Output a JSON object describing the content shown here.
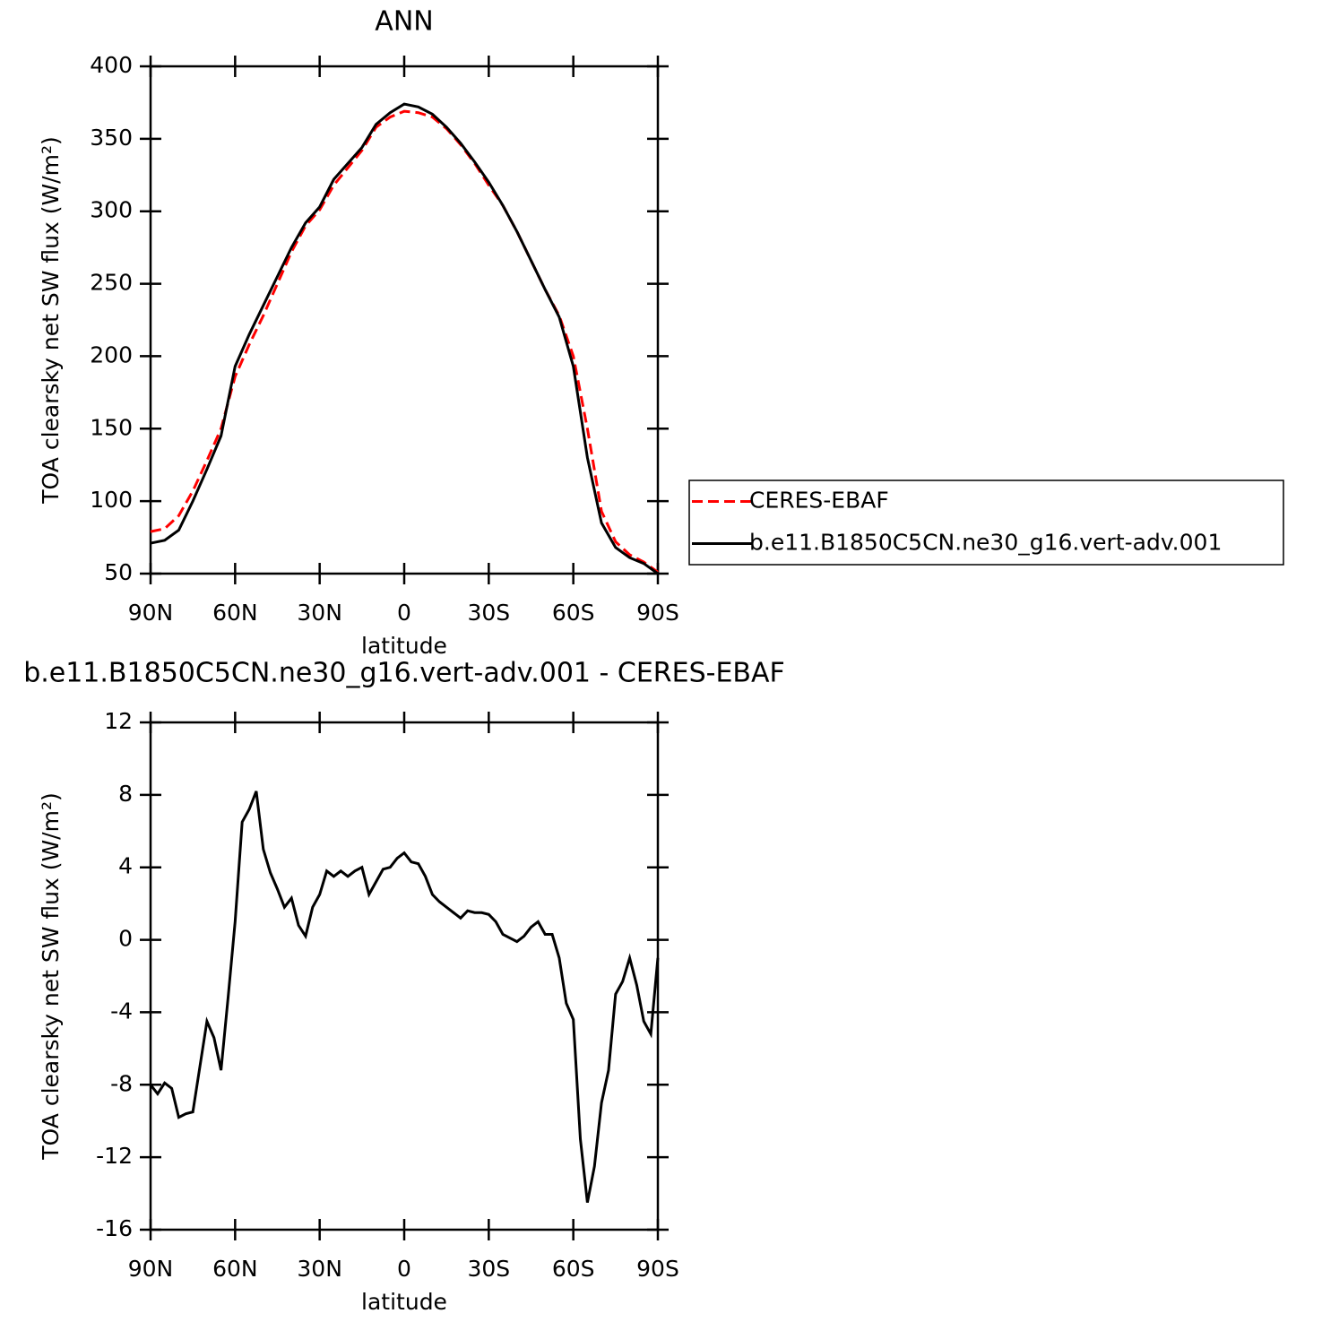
{
  "chart_data": [
    {
      "type": "line",
      "title": "ANN",
      "xlabel": "latitude",
      "ylabel": "TOA clearsky net SW flux (W/m²)",
      "x": [
        90,
        85,
        80,
        75,
        70,
        65,
        60,
        55,
        50,
        45,
        40,
        35,
        30,
        25,
        20,
        15,
        10,
        5,
        0,
        -5,
        -10,
        -15,
        -20,
        -25,
        -30,
        -35,
        -40,
        -45,
        -50,
        -55,
        -60,
        -65,
        -70,
        -75,
        -80,
        -85,
        -90
      ],
      "series": [
        {
          "name": "CERES-EBAF",
          "color": "#ff0000",
          "linestyle": "dashed",
          "values": [
            79,
            81,
            90,
            107,
            128,
            150,
            186,
            208,
            228,
            250,
            272,
            290,
            301,
            318,
            330,
            342,
            358,
            365,
            369,
            368,
            365,
            357,
            346,
            333,
            318,
            304,
            286,
            266,
            246,
            228,
            200,
            150,
            93,
            72,
            63,
            58,
            51
          ]
        },
        {
          "name": "b.e11.B1850C5CN.ne30_g16.vert-adv.001",
          "color": "#000000",
          "linestyle": "solid",
          "values": [
            71,
            73,
            80,
            100,
            122,
            145,
            193,
            215,
            235,
            255,
            275,
            292,
            303,
            322,
            333,
            344,
            360,
            368,
            374,
            372,
            367,
            358,
            347,
            334,
            320,
            304,
            286,
            266,
            246,
            227,
            193,
            130,
            85,
            68,
            61,
            57,
            50
          ]
        }
      ],
      "xlim": [
        90,
        -90
      ],
      "xticks": [
        {
          "value": 90,
          "label": "90N"
        },
        {
          "value": 60,
          "label": "60N"
        },
        {
          "value": 30,
          "label": "30N"
        },
        0,
        {
          "value": -30,
          "label": "30S"
        },
        {
          "value": -60,
          "label": "60S"
        },
        {
          "value": -90,
          "label": "90S"
        }
      ],
      "ylim": [
        50,
        400
      ],
      "yticks": [
        50,
        100,
        150,
        200,
        250,
        300,
        350,
        400
      ],
      "legend": "outside-right"
    },
    {
      "type": "line",
      "title": "b.e11.B1850C5CN.ne30_g16.vert-adv.001 - CERES-EBAF",
      "xlabel": "latitude",
      "ylabel": "TOA clearsky net SW flux (W/m²)",
      "x": [
        90,
        87.5,
        85,
        82.5,
        80,
        77.5,
        75,
        72.5,
        70,
        67.5,
        65,
        62.5,
        60,
        57.5,
        55,
        52.5,
        50,
        47.5,
        45,
        42.5,
        40,
        37.5,
        35,
        32.5,
        30,
        27.5,
        25,
        22.5,
        20,
        17.5,
        15,
        12.5,
        10,
        7.5,
        5,
        2.5,
        0,
        -2.5,
        -5,
        -7.5,
        -10,
        -12.5,
        -15,
        -17.5,
        -20,
        -22.5,
        -25,
        -27.5,
        -30,
        -32.5,
        -35,
        -37.5,
        -40,
        -42.5,
        -45,
        -47.5,
        -50,
        -52.5,
        -55,
        -57.5,
        -60,
        -62.5,
        -65,
        -67.5,
        -70,
        -72.5,
        -75,
        -77.5,
        -80,
        -82.5,
        -85,
        -87.5,
        -90
      ],
      "series": [
        {
          "color": "#000000",
          "linestyle": "solid",
          "values": [
            -8.0,
            -8.5,
            -7.9,
            -8.2,
            -9.8,
            -9.6,
            -9.5,
            -7.0,
            -4.5,
            -5.4,
            -7.2,
            -3.2,
            1.0,
            6.5,
            7.2,
            8.2,
            5.0,
            3.7,
            2.8,
            1.8,
            2.3,
            0.8,
            0.2,
            1.8,
            2.5,
            3.8,
            3.5,
            3.8,
            3.5,
            3.8,
            4.0,
            2.5,
            3.2,
            3.9,
            4.0,
            4.5,
            4.8,
            4.3,
            4.2,
            3.5,
            2.5,
            2.1,
            1.8,
            1.5,
            1.2,
            1.6,
            1.5,
            1.5,
            1.4,
            1.0,
            0.3,
            0.1,
            -0.1,
            0.2,
            0.7,
            1.0,
            0.3,
            0.3,
            -1.0,
            -3.5,
            -4.4,
            -11,
            -14.5,
            -12.5,
            -9.0,
            -7.2,
            -3.0,
            -2.3,
            -1.0,
            -2.5,
            -4.5,
            -5.2,
            -1.0
          ]
        }
      ],
      "xlim": [
        90,
        -90
      ],
      "xticks": [
        {
          "value": 90,
          "label": "90N"
        },
        {
          "value": 60,
          "label": "60N"
        },
        {
          "value": 30,
          "label": "30N"
        },
        0,
        {
          "value": -30,
          "label": "30S"
        },
        {
          "value": -60,
          "label": "60S"
        },
        {
          "value": -90,
          "label": "90S"
        }
      ],
      "ylim": [
        -16,
        12
      ],
      "yticks": [
        -16,
        -12,
        -8,
        -4,
        0,
        4,
        8,
        12
      ]
    }
  ]
}
